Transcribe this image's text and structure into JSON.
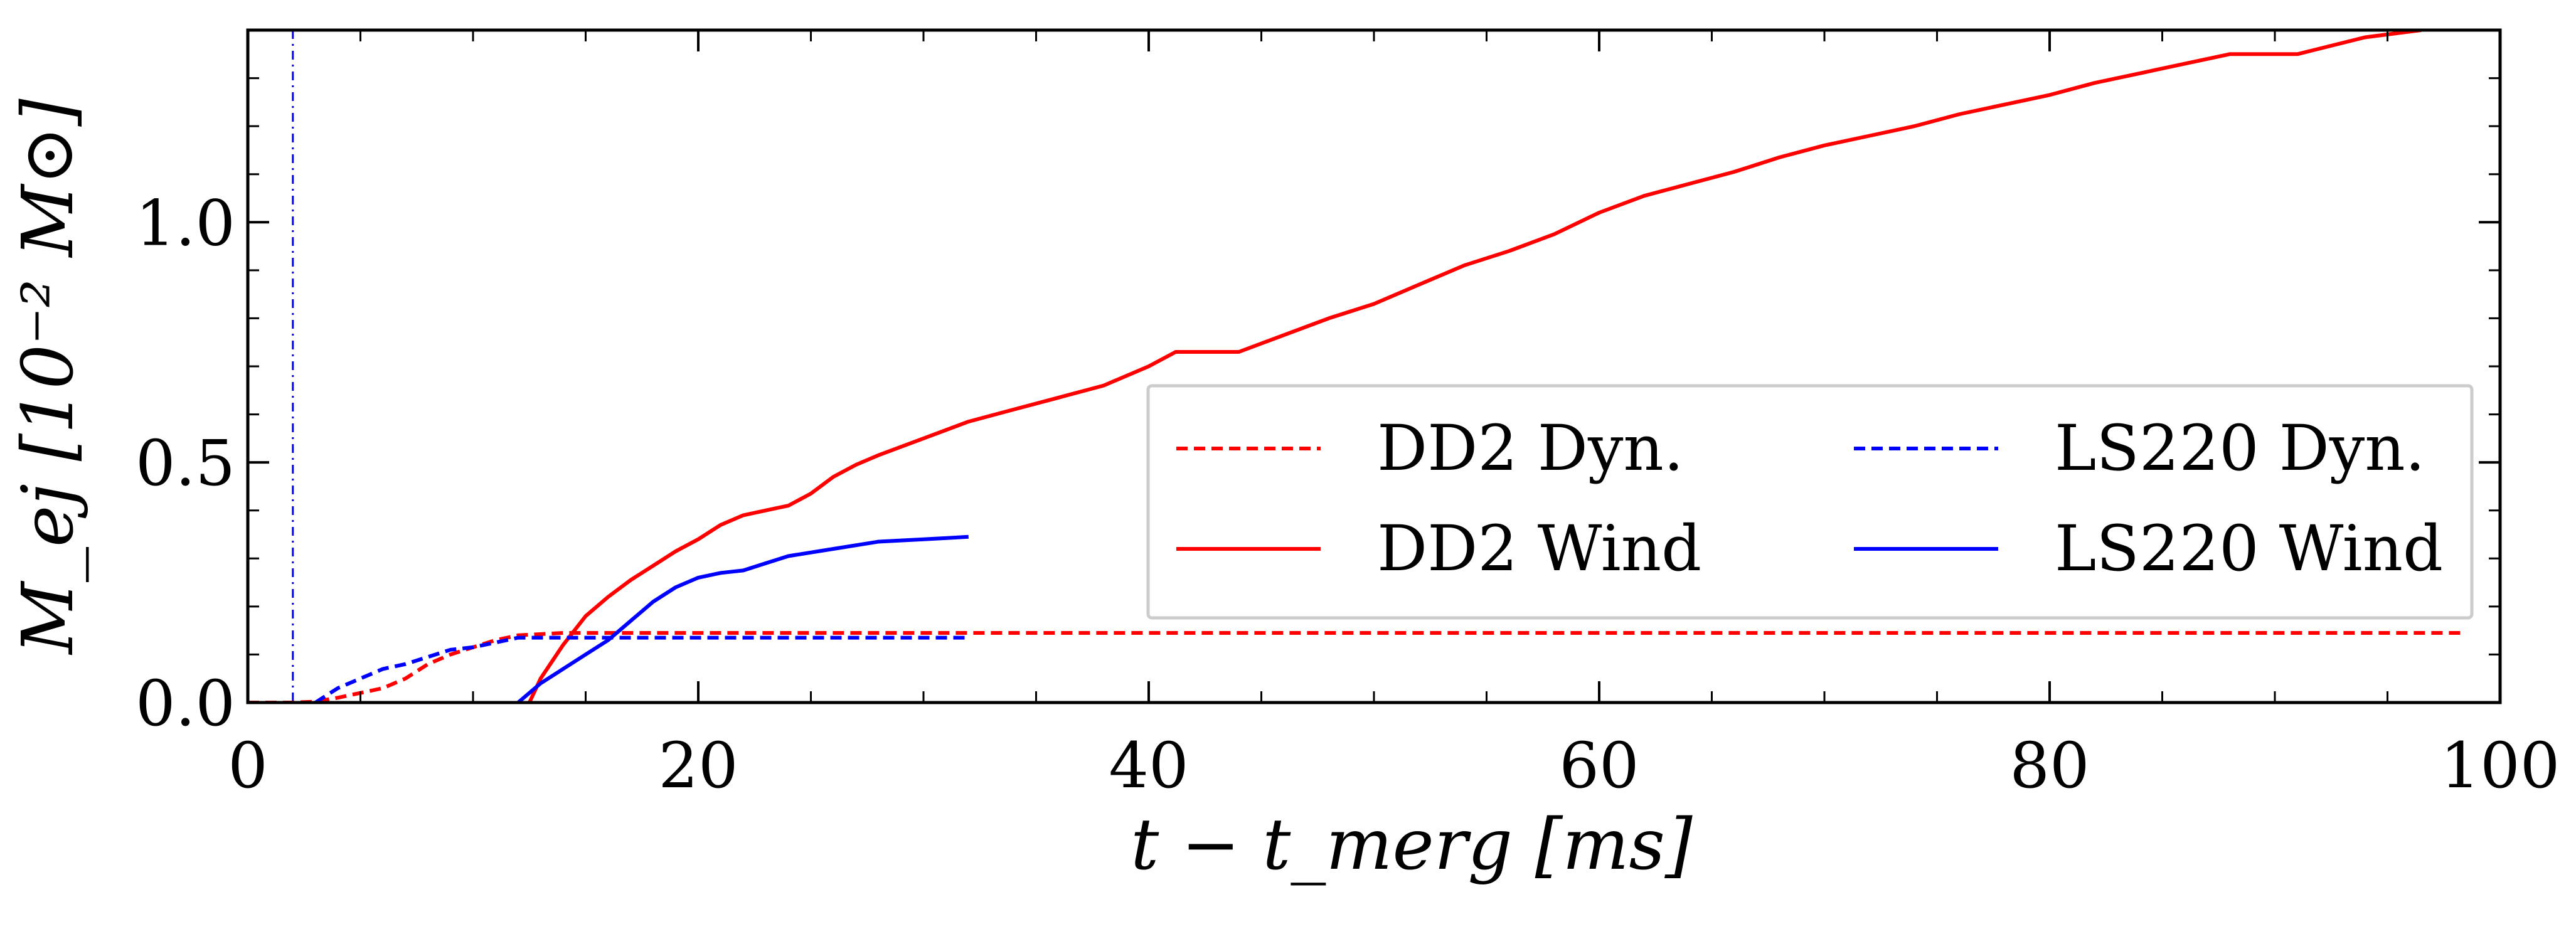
{
  "chart_data": {
    "type": "line",
    "xlabel": "t − t_merg [ms]",
    "ylabel": "M_ej [10⁻² M⊙]",
    "xlim": [
      0,
      100
    ],
    "ylim": [
      0,
      1.4
    ],
    "xticks": [
      0,
      20,
      40,
      60,
      80,
      100
    ],
    "xtick_labels": [
      "0",
      "20",
      "40",
      "60",
      "80",
      "100"
    ],
    "yticks": [
      0.0,
      0.5,
      1.0
    ],
    "ytick_labels": [
      "0.0",
      "0.5",
      "1.0"
    ],
    "grid": false,
    "legend_position": "center-right",
    "vertical_line": {
      "x": 2.0,
      "color": "#0000ff",
      "style": "dash-dot"
    },
    "series": [
      {
        "name": "DD2 Dyn.",
        "color": "#ff0000",
        "style": "dashed",
        "x": [
          0,
          2,
          3,
          4,
          5,
          6,
          7,
          8,
          9,
          10,
          11,
          12,
          14,
          20,
          40,
          60,
          80,
          98.5
        ],
        "y": [
          0,
          0,
          0.002,
          0.01,
          0.02,
          0.03,
          0.05,
          0.08,
          0.1,
          0.115,
          0.13,
          0.14,
          0.145,
          0.145,
          0.145,
          0.145,
          0.145,
          0.145
        ]
      },
      {
        "name": "DD2 Wind",
        "color": "#ff0000",
        "style": "solid",
        "x": [
          12.5,
          13,
          14,
          15,
          16,
          17,
          18,
          19,
          20,
          21,
          22,
          23,
          24,
          25,
          26,
          27,
          28,
          30,
          32,
          34,
          36,
          38,
          40,
          41.2,
          44,
          46,
          48,
          50,
          52,
          54,
          56,
          58,
          60,
          62,
          64,
          66,
          68,
          70,
          72,
          74,
          76,
          78,
          80,
          82,
          84,
          86,
          88,
          91,
          94,
          96.5
        ],
        "y": [
          0.0,
          0.05,
          0.12,
          0.18,
          0.22,
          0.255,
          0.285,
          0.315,
          0.34,
          0.37,
          0.39,
          0.4,
          0.41,
          0.435,
          0.47,
          0.495,
          0.515,
          0.55,
          0.585,
          0.61,
          0.635,
          0.66,
          0.7,
          0.73,
          0.73,
          0.765,
          0.8,
          0.83,
          0.87,
          0.91,
          0.94,
          0.975,
          1.02,
          1.055,
          1.08,
          1.105,
          1.135,
          1.16,
          1.18,
          1.2,
          1.225,
          1.245,
          1.265,
          1.29,
          1.31,
          1.33,
          1.35,
          1.35,
          1.385,
          1.4
        ]
      },
      {
        "name": "LS220 Dyn.",
        "color": "#0000ff",
        "style": "dashed",
        "x": [
          3,
          4,
          5,
          6,
          7,
          8,
          9,
          10,
          11,
          12,
          14,
          20,
          25,
          32
        ],
        "y": [
          0,
          0.03,
          0.05,
          0.07,
          0.08,
          0.095,
          0.11,
          0.115,
          0.125,
          0.135,
          0.135,
          0.135,
          0.135,
          0.135
        ]
      },
      {
        "name": "LS220 Wind",
        "color": "#0000ff",
        "style": "solid",
        "x": [
          12,
          13,
          14,
          15,
          16,
          17,
          18,
          19,
          20,
          21,
          22,
          23,
          24,
          26,
          28,
          30,
          32
        ],
        "y": [
          0.0,
          0.04,
          0.07,
          0.1,
          0.13,
          0.17,
          0.21,
          0.24,
          0.26,
          0.27,
          0.275,
          0.29,
          0.305,
          0.32,
          0.335,
          0.34,
          0.345
        ]
      }
    ]
  }
}
